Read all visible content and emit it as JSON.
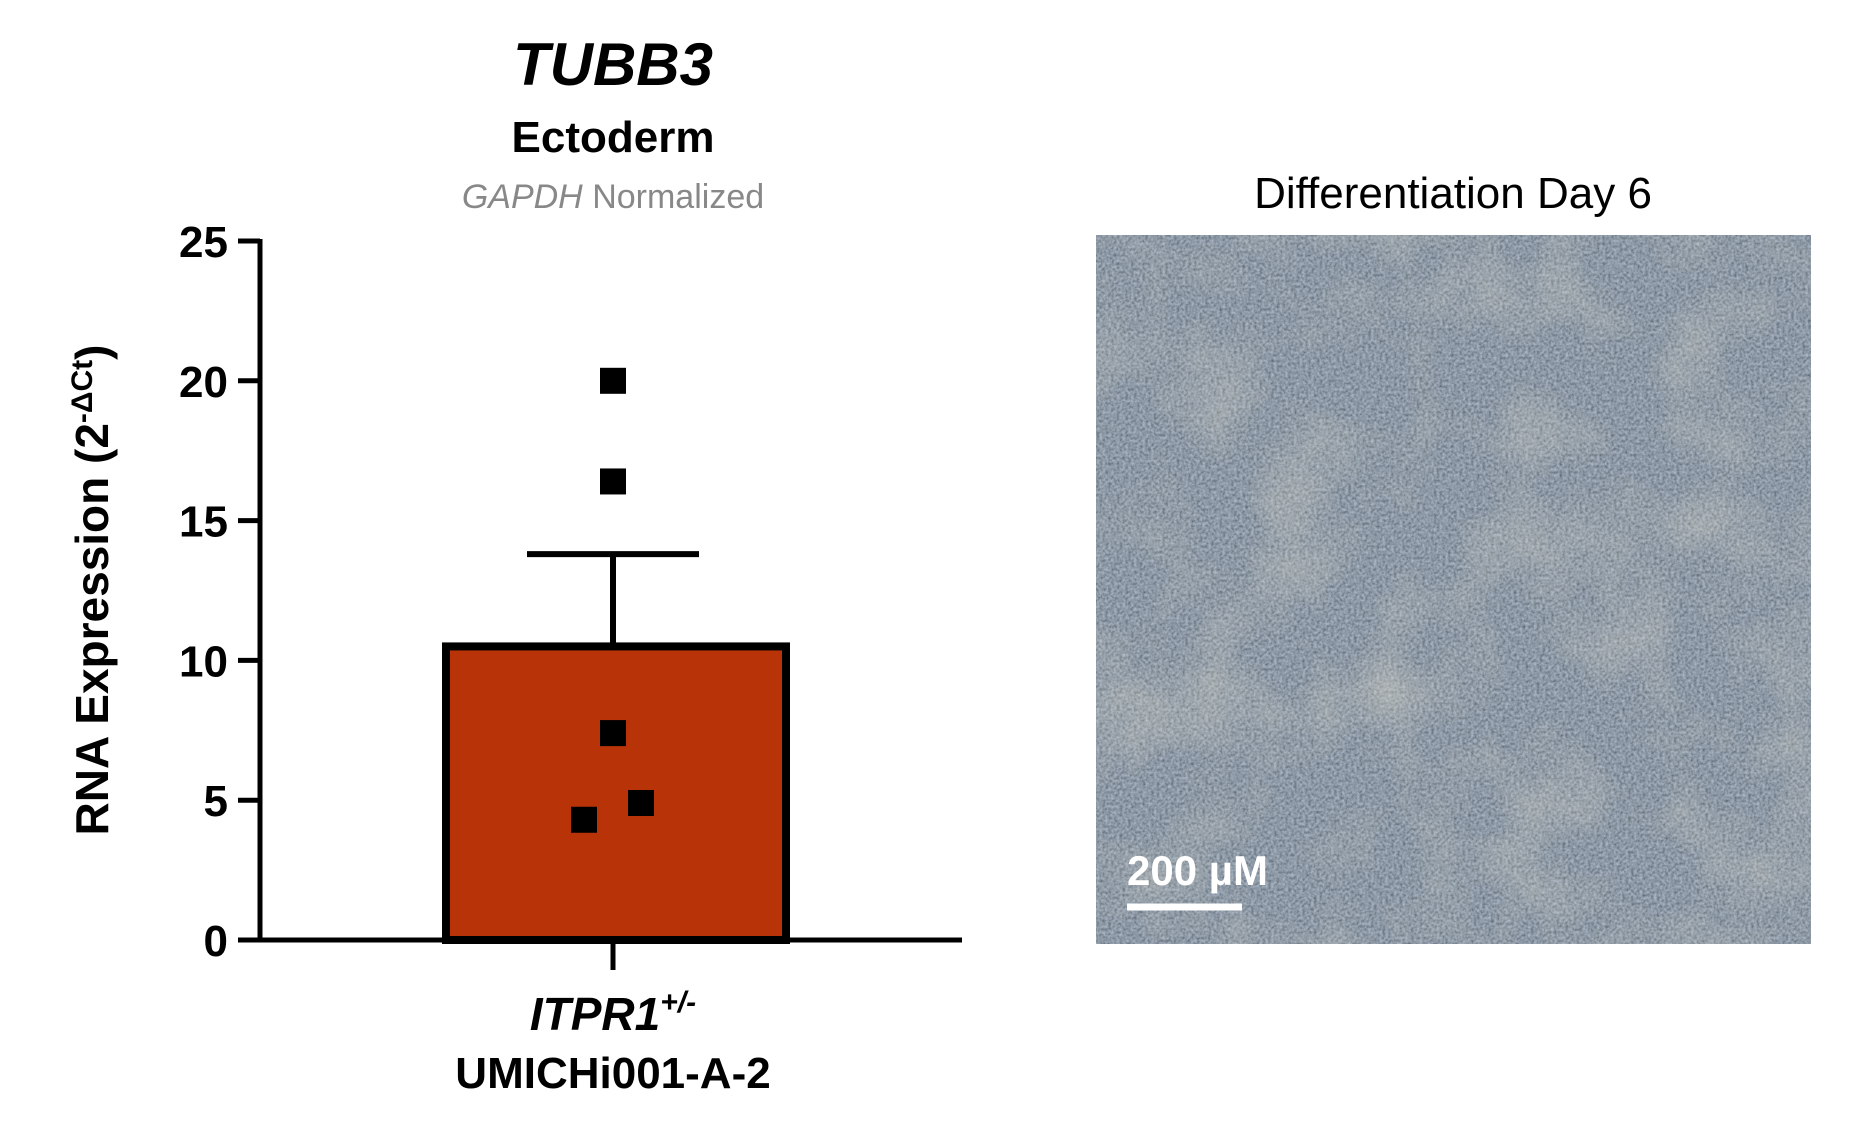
{
  "chart_data": {
    "type": "bar",
    "title": "TUBB3",
    "subtitle": "Ectoderm",
    "note_gene": "GAPDH",
    "note_text": "Normalized",
    "ylabel": "RNA Expression (2",
    "ylabel_sup": "-ΔCt",
    "ylabel_end": ")",
    "category_gene": "ITPR1",
    "category_genotype": "+/-",
    "categories": [
      "UMICHi001-A-2"
    ],
    "series": [
      {
        "color": "#b83308",
        "values": [
          10.5
        ],
        "errors": [
          3.3
        ],
        "points": [
          20,
          16.4,
          7.4,
          4.9,
          4.3
        ]
      }
    ],
    "ylim": [
      0,
      25
    ],
    "yticks": [
      0,
      5,
      10,
      15,
      20,
      25
    ]
  },
  "image_panel": {
    "title": "Differentiation Day 6",
    "scale_bar": "200 µM"
  }
}
